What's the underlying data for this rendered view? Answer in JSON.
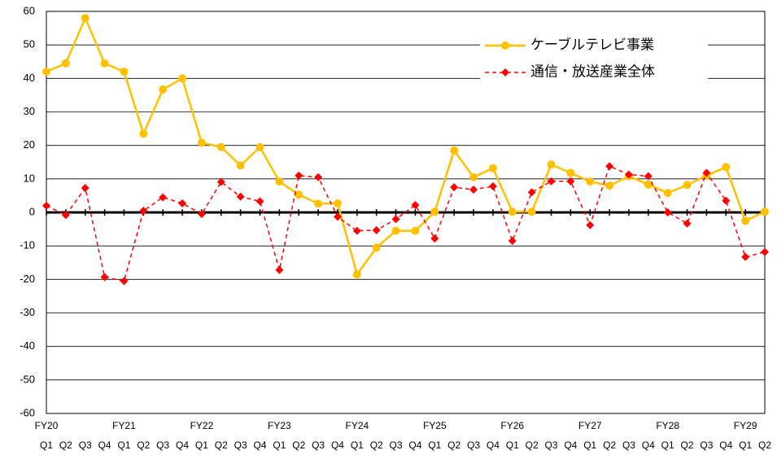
{
  "chart_data": {
    "type": "line",
    "categories": [
      "Q1",
      "Q2",
      "Q3",
      "Q4",
      "Q1",
      "Q2",
      "Q3",
      "Q4",
      "Q1",
      "Q2",
      "Q3",
      "Q4",
      "Q1",
      "Q2",
      "Q3",
      "Q4",
      "Q1",
      "Q2",
      "Q3",
      "Q4",
      "Q1",
      "Q2",
      "Q3",
      "Q4",
      "Q1",
      "Q2",
      "Q3",
      "Q4",
      "Q1",
      "Q2",
      "Q3",
      "Q4",
      "Q1",
      "Q2",
      "Q3",
      "Q4",
      "Q1",
      "Q2"
    ],
    "year_labels": [
      "FY20",
      null,
      null,
      null,
      "FY21",
      null,
      null,
      null,
      "FY22",
      null,
      null,
      null,
      "FY23",
      null,
      null,
      null,
      "FY24",
      null,
      null,
      null,
      "FY25",
      null,
      null,
      null,
      "FY26",
      null,
      null,
      null,
      "FY27",
      null,
      null,
      null,
      "FY28",
      null,
      null,
      null,
      "FY29",
      null
    ],
    "series": [
      {
        "name": "ケーブルテレビ事業",
        "color": "#ffc000",
        "marker": "circle",
        "dash": false,
        "values": [
          42,
          44.5,
          58,
          44.5,
          42,
          23.5,
          36.7,
          40,
          20.8,
          19.5,
          14,
          19.5,
          9.2,
          5.3,
          2.6,
          2.7,
          -18.5,
          -10.5,
          -5.5,
          -5.5,
          0.2,
          18.5,
          10.5,
          13.2,
          0.2,
          0.2,
          14.3,
          11.8,
          9.2,
          8,
          10.8,
          8.3,
          5.8,
          8.2,
          11,
          13.5,
          -2.5,
          0.2
        ]
      },
      {
        "name": "通信・放送産業全体",
        "color": "#ff0000",
        "marker": "diamond",
        "dash": true,
        "values": [
          2,
          -0.8,
          7.3,
          -19.3,
          -20.5,
          0.5,
          4.5,
          2.7,
          -0.5,
          9.1,
          4.7,
          3.3,
          -17.2,
          11,
          10.5,
          -1.3,
          -5.5,
          -5.3,
          -2,
          2.2,
          -7.8,
          7.5,
          6.8,
          7.8,
          -8.5,
          6,
          9.3,
          9.3,
          -3.8,
          13.8,
          11.3,
          10.8,
          0,
          -3.3,
          11.8,
          3.5,
          -13.3,
          -11.8
        ]
      }
    ],
    "ylim": [
      -60,
      60
    ],
    "yticks": [
      -60,
      -50,
      -40,
      -30,
      -20,
      -10,
      0,
      10,
      20,
      30,
      40,
      50,
      60
    ],
    "grid": true,
    "legend": "upper right"
  }
}
